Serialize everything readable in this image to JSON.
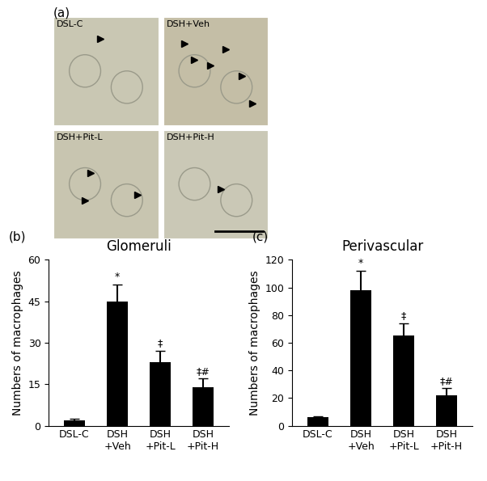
{
  "panel_a": {
    "label": "(a)",
    "image_labels": [
      "DSL-C",
      "DSH+Veh",
      "DSH+Pit-L",
      "DSH+Pit-H"
    ]
  },
  "chart_data": [
    {
      "type": "bar",
      "title": "Glomeruli",
      "annotations": [
        "(b)"
      ],
      "categories": [
        "DSL-C",
        "DSH\n+Veh",
        "DSH\n+Pit-L",
        "DSH\n+Pit-H"
      ],
      "values": [
        2,
        45,
        23,
        14
      ],
      "errors": [
        0.5,
        6,
        4,
        3
      ],
      "bar_marks": [
        null,
        "*",
        "‡",
        "‡#"
      ],
      "y_label": "Numbers of macrophages",
      "color": "#000000",
      "ylim": [
        0,
        60
      ],
      "yticks": [
        0,
        15,
        30,
        45,
        60
      ]
    },
    {
      "type": "bar",
      "title": "Perivascular",
      "annotations": [
        "(c)"
      ],
      "categories": [
        "DSL-C",
        "DSH\n+Veh",
        "DSH\n+Pit-L",
        "DSH\n+Pit-H"
      ],
      "values": [
        6,
        98,
        65,
        22
      ],
      "errors": [
        1,
        14,
        9,
        5
      ],
      "bar_marks": [
        null,
        "*",
        "‡",
        "‡#"
      ],
      "y_label": "Numbers of macrophages",
      "color": "#000000",
      "ylim": [
        0,
        120
      ],
      "yticks": [
        0,
        20,
        40,
        60,
        80,
        100,
        120
      ]
    }
  ]
}
